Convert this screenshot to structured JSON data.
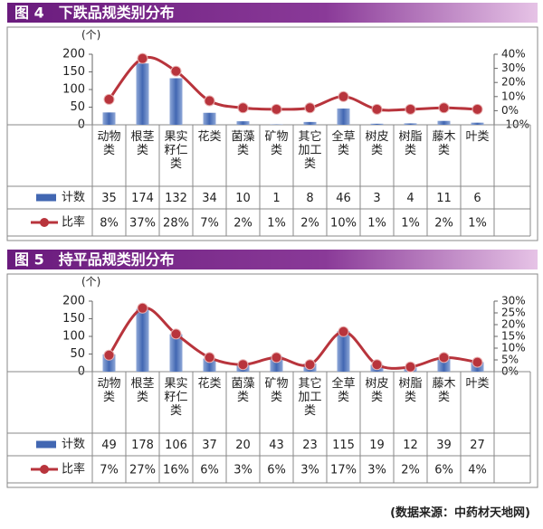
{
  "chart_data": [
    {
      "type": "bar",
      "title": "图 4　下跌品规类别分布",
      "unit": "(个)",
      "categories": [
        "动物类",
        "根茎类",
        "果实籽仁类",
        "花类",
        "菌藻类",
        "矿物类",
        "其它加工类",
        "全草类",
        "树皮类",
        "树脂类",
        "藤木类",
        "叶类"
      ],
      "series": [
        {
          "name": "计数",
          "color": "#4267b2",
          "values": [
            35,
            174,
            132,
            34,
            10,
            1,
            8,
            46,
            3,
            4,
            11,
            6
          ]
        },
        {
          "name": "比率",
          "color": "#b8343c",
          "axis": "y2",
          "values": [
            8,
            37,
            28,
            7,
            2,
            1,
            2,
            10,
            1,
            1,
            2,
            1
          ],
          "value_labels": [
            "8%",
            "37%",
            "28%",
            "7%",
            "2%",
            "1%",
            "2%",
            "10%",
            "1%",
            "1%",
            "2%",
            "1%"
          ]
        }
      ],
      "ylim": [
        0,
        200
      ],
      "yticks": [
        0,
        50,
        100,
        150,
        200
      ],
      "y2lim": [
        -10,
        40
      ],
      "y2ticks": [
        {
          "value": -10,
          "label": "-10%"
        },
        {
          "value": 0,
          "label": "0%"
        },
        {
          "value": 10,
          "label": "10%"
        },
        {
          "value": 20,
          "label": "20%"
        },
        {
          "value": 30,
          "label": "30%"
        },
        {
          "value": 40,
          "label": "40%"
        }
      ]
    },
    {
      "type": "bar",
      "title": "图 5　持平品规类别分布",
      "unit": "(个)",
      "categories": [
        "动物类",
        "根茎类",
        "果实籽仁类",
        "花类",
        "菌藻类",
        "矿物类",
        "其它加工类",
        "全草类",
        "树皮类",
        "树脂类",
        "藤木类",
        "叶类"
      ],
      "series": [
        {
          "name": "计数",
          "color": "#4267b2",
          "values": [
            49,
            178,
            106,
            37,
            20,
            43,
            23,
            115,
            19,
            12,
            39,
            27
          ]
        },
        {
          "name": "比率",
          "color": "#b8343c",
          "axis": "y2",
          "values": [
            7,
            27,
            16,
            6,
            3,
            6,
            3,
            17,
            3,
            2,
            6,
            4
          ],
          "value_labels": [
            "7%",
            "27%",
            "16%",
            "6%",
            "3%",
            "6%",
            "3%",
            "17%",
            "3%",
            "2%",
            "6%",
            "4%"
          ]
        }
      ],
      "ylim": [
        0,
        200
      ],
      "yticks": [
        0,
        50,
        100,
        150,
        200
      ],
      "y2lim": [
        0,
        30
      ],
      "y2ticks": [
        {
          "value": 0,
          "label": "0%"
        },
        {
          "value": 5,
          "label": "5%"
        },
        {
          "value": 10,
          "label": "10%"
        },
        {
          "value": 15,
          "label": "15%"
        },
        {
          "value": 20,
          "label": "20%"
        },
        {
          "value": 25,
          "label": "25%"
        },
        {
          "value": 30,
          "label": "30%"
        }
      ]
    }
  ],
  "source": "(数据来源：中药材天地网)"
}
